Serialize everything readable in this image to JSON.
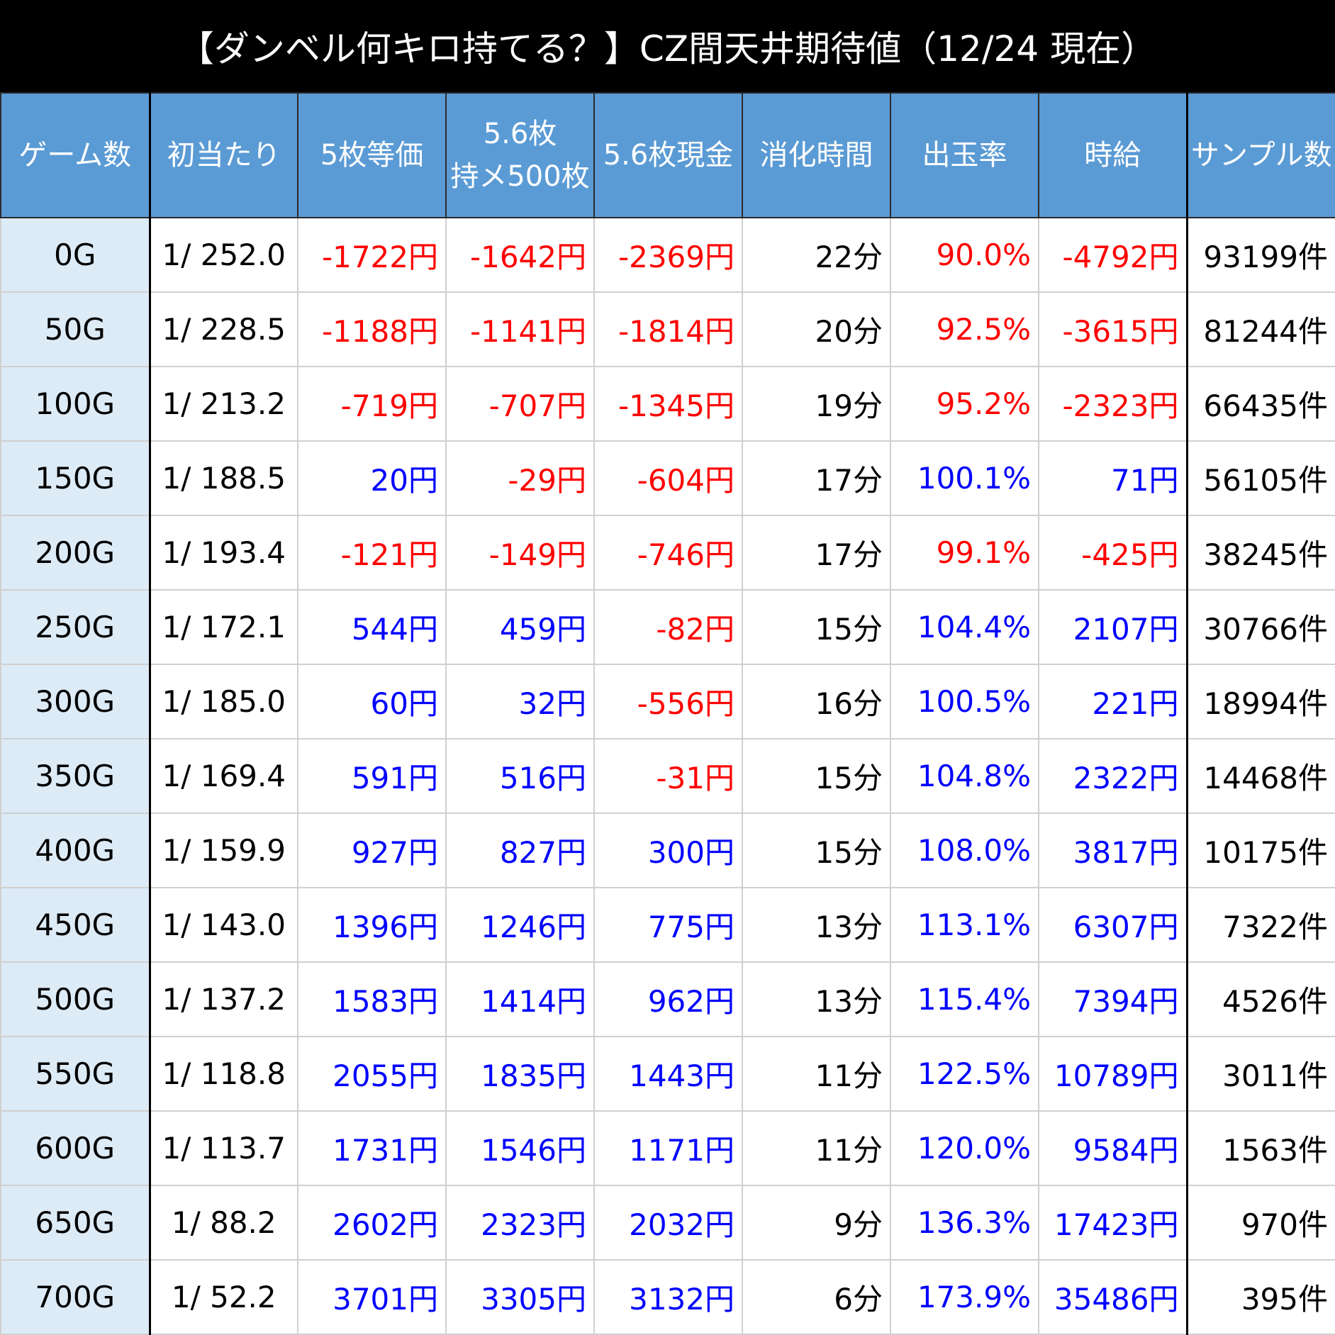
{
  "title": "【ダンベル何キロ持てる？】CZ間天井期待値（12/24 現在）",
  "columns": [
    "ゲーム数",
    "初当たり",
    "5枚等価",
    "5.6枚\n持メ500枚",
    "5.6枚現金",
    "消化時間",
    "出玉率",
    "時給",
    "サンプル数"
  ],
  "colors": {
    "negative": "#ff0000",
    "positive": "#0000ff",
    "header_bg": "#5b9bd5",
    "first_col_bg": "#ddebf7",
    "title_bg": "#000000"
  },
  "chart_data": {
    "type": "table",
    "title": "【ダンベル何キロ持てる？】CZ間天井期待値（12/24 現在）",
    "columns": [
      "ゲーム数",
      "初当たり",
      "5枚等価",
      "5.6枚 持メ500枚",
      "5.6枚現金",
      "消化時間",
      "出玉率",
      "時給",
      "サンプル数"
    ],
    "rows": [
      [
        "0G",
        "1/ 252.0",
        "-1722円",
        "-1642円",
        "-2369円",
        "22分",
        "90.0%",
        "-4792円",
        "93199件"
      ],
      [
        "50G",
        "1/ 228.5",
        "-1188円",
        "-1141円",
        "-1814円",
        "20分",
        "92.5%",
        "-3615円",
        "81244件"
      ],
      [
        "100G",
        "1/ 213.2",
        "-719円",
        "-707円",
        "-1345円",
        "19分",
        "95.2%",
        "-2323円",
        "66435件"
      ],
      [
        "150G",
        "1/ 188.5",
        "20円",
        "-29円",
        "-604円",
        "17分",
        "100.1%",
        "71円",
        "56105件"
      ],
      [
        "200G",
        "1/ 193.4",
        "-121円",
        "-149円",
        "-746円",
        "17分",
        "99.1%",
        "-425円",
        "38245件"
      ],
      [
        "250G",
        "1/ 172.1",
        "544円",
        "459円",
        "-82円",
        "15分",
        "104.4%",
        "2107円",
        "30766件"
      ],
      [
        "300G",
        "1/ 185.0",
        "60円",
        "32円",
        "-556円",
        "16分",
        "100.5%",
        "221円",
        "18994件"
      ],
      [
        "350G",
        "1/ 169.4",
        "591円",
        "516円",
        "-31円",
        "15分",
        "104.8%",
        "2322円",
        "14468件"
      ],
      [
        "400G",
        "1/ 159.9",
        "927円",
        "827円",
        "300円",
        "15分",
        "108.0%",
        "3817円",
        "10175件"
      ],
      [
        "450G",
        "1/ 143.0",
        "1396円",
        "1246円",
        "775円",
        "13分",
        "113.1%",
        "6307円",
        "7322件"
      ],
      [
        "500G",
        "1/ 137.2",
        "1583円",
        "1414円",
        "962円",
        "13分",
        "115.4%",
        "7394円",
        "4526件"
      ],
      [
        "550G",
        "1/ 118.8",
        "2055円",
        "1835円",
        "1443円",
        "11分",
        "122.5%",
        "10789円",
        "3011件"
      ],
      [
        "600G",
        "1/ 113.7",
        "1731円",
        "1546円",
        "1171円",
        "11分",
        "120.0%",
        "9584円",
        "1563件"
      ],
      [
        "650G",
        "1/ 88.2",
        "2602円",
        "2323円",
        "2032円",
        "9分",
        "136.3%",
        "17423円",
        "970件"
      ],
      [
        "700G",
        "1/ 52.2",
        "3701円",
        "3305円",
        "3132円",
        "6分",
        "173.9%",
        "35486円",
        "395件"
      ]
    ]
  }
}
